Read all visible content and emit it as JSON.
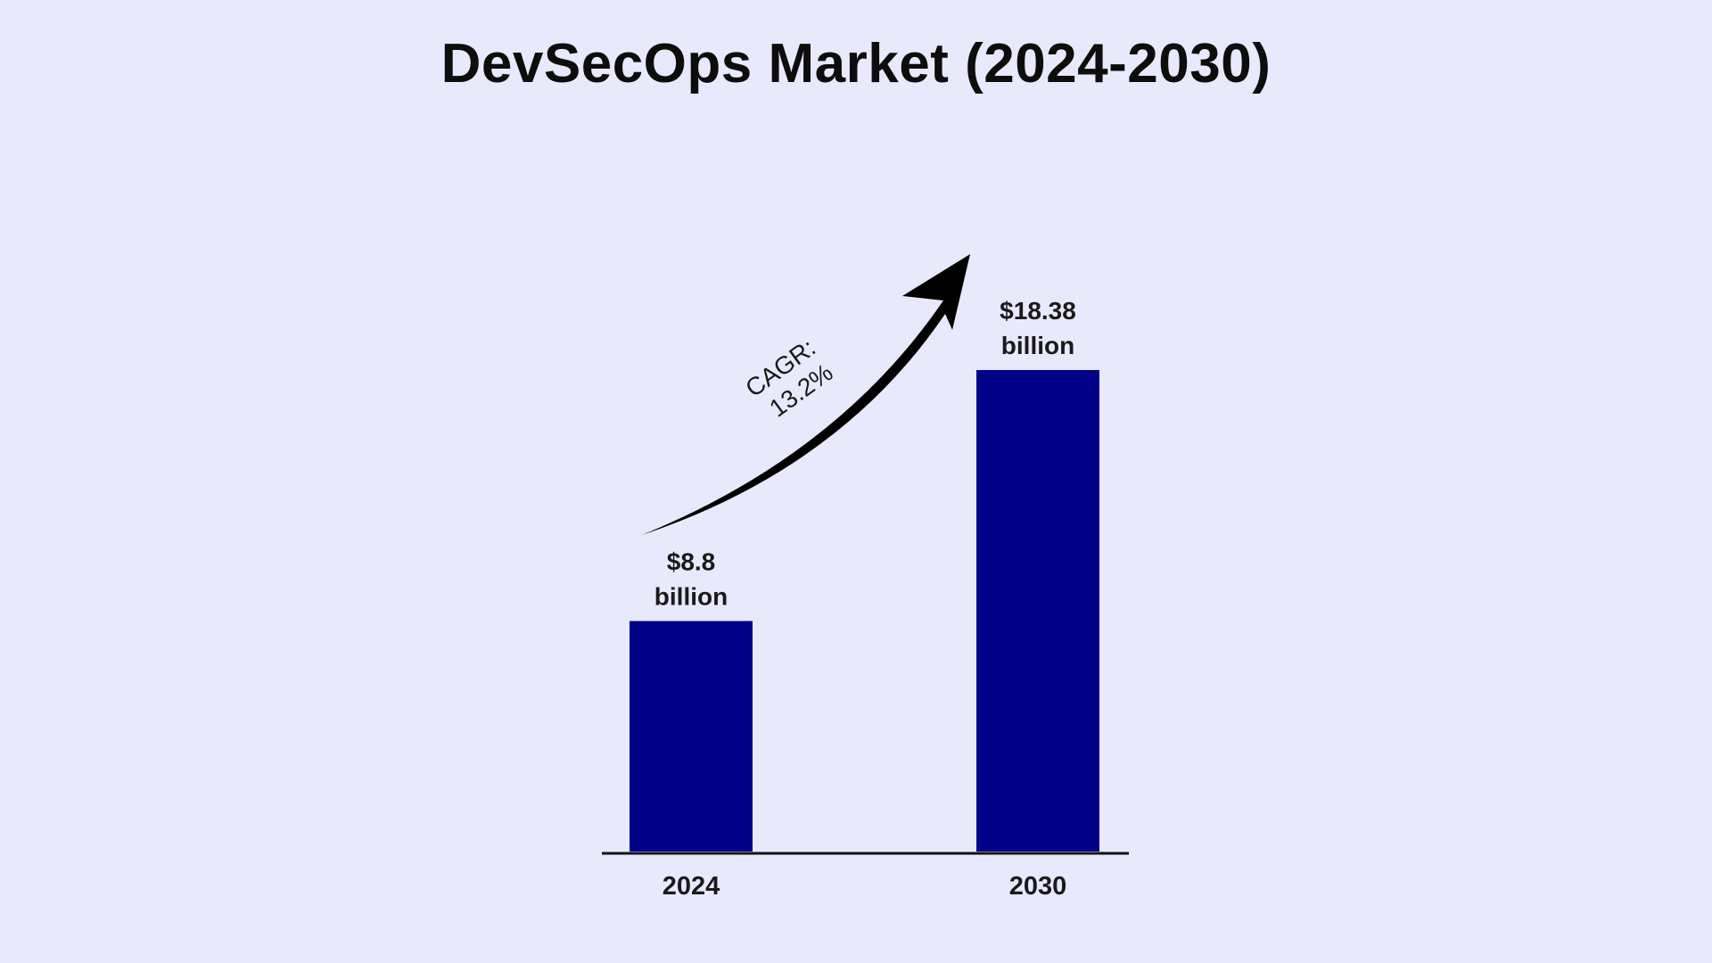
{
  "chart_data": {
    "type": "bar",
    "title": "DevSecOps Market (2024-2030)",
    "xlabel": "",
    "ylabel": "",
    "categories": [
      "2024",
      "2030"
    ],
    "values": [
      8.8,
      18.38
    ],
    "unit": "billion USD",
    "data_labels": [
      [
        "$8.8",
        "billion"
      ],
      [
        "$18.38",
        "billion"
      ]
    ],
    "ylim": [
      0,
      18.38
    ],
    "grid": false,
    "legend": "none",
    "annotation": {
      "type": "curved-arrow",
      "from": "2024",
      "to": "2030",
      "lines": [
        "CAGR:",
        "13.2%"
      ]
    },
    "colors": {
      "bar": "#020288",
      "axis": "#111111",
      "arrow": "#000000",
      "background": "#e9e9fd",
      "text": "#1a1a1a"
    }
  }
}
